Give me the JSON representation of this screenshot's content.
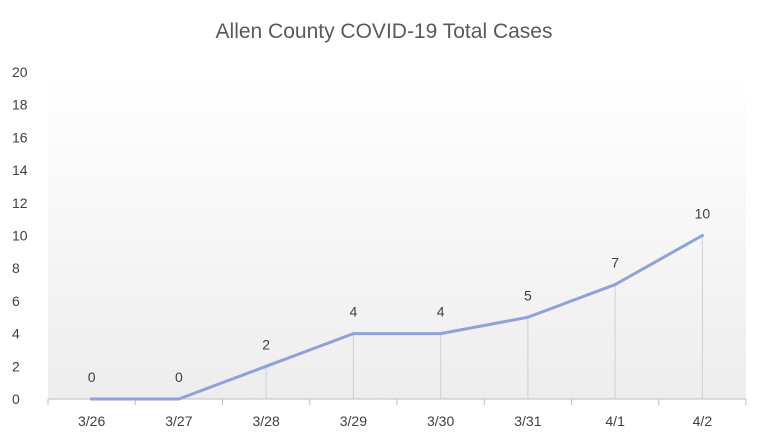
{
  "chart_data": {
    "type": "line",
    "title": "Allen County COVID-19 Total Cases",
    "categories": [
      "3/26",
      "3/27",
      "3/28",
      "3/29",
      "3/30",
      "3/31",
      "4/1",
      "4/2"
    ],
    "series": [
      {
        "values": [
          0,
          0,
          2,
          4,
          4,
          5,
          7,
          10
        ]
      }
    ],
    "xlabel": "",
    "ylabel": "",
    "ylim": [
      0,
      20
    ],
    "yticks": [
      0,
      2,
      4,
      6,
      8,
      10,
      12,
      14,
      16,
      18,
      20
    ],
    "grid": false,
    "drop_lines": true,
    "data_labels": true,
    "legend": "none",
    "colors": {
      "line": "#8FA3D6",
      "drop_line": "#D0D0D0",
      "axis": "#BFBFBF",
      "background_top": "#FFFFFF",
      "background_bottom": "#EDEDED"
    }
  }
}
